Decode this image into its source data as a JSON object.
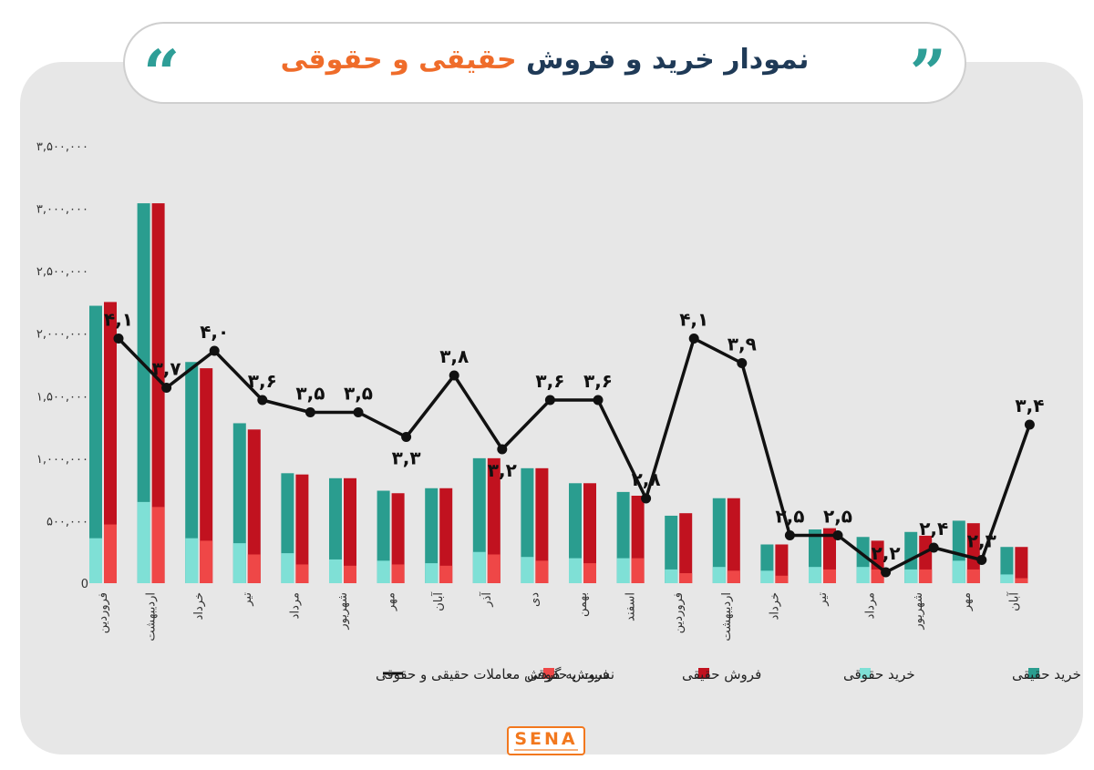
{
  "title": {
    "part1": "نمودار خرید و فروش",
    "part2": "حقیقی و حقوقی"
  },
  "logo": {
    "text": "SENA"
  },
  "colors": {
    "buy_real": "#2a9d8f",
    "buy_legal": "#7fe0d6",
    "sell_real": "#c1121f",
    "sell_legal": "#ef4747",
    "line": "#111111",
    "title_dark": "#1f3a57",
    "title_accent": "#ef6c2a"
  },
  "chart_data": {
    "type": "bar",
    "ylim": [
      0,
      3500000
    ],
    "yticks": [
      0,
      500000,
      1000000,
      1500000,
      2000000,
      2500000,
      3000000,
      3500000
    ],
    "ytick_labels": [
      "0",
      "۵۰۰,۰۰۰",
      "۱,۰۰۰,۰۰۰",
      "۱,۵۰۰,۰۰۰",
      "۲,۰۰۰,۰۰۰",
      "۲,۵۰۰,۰۰۰",
      "۳,۰۰۰,۰۰۰",
      "۳,۵۰۰,۰۰۰"
    ],
    "categories": [
      "فروردین",
      "اردیبهشت",
      "خرداد",
      "تیر",
      "مرداد",
      "شهریور",
      "مهر",
      "آبان",
      "آذر",
      "دی",
      "بهمن",
      "اسفند",
      "فروردین",
      "اردیبهشت",
      "خرداد",
      "تیر",
      "مرداد",
      "شهریور",
      "مهر",
      "آبان"
    ],
    "series": [
      {
        "name": "خرید حقیقی",
        "values": [
          2220000,
          3040000,
          1770000,
          1280000,
          880000,
          840000,
          740000,
          760000,
          1000000,
          920000,
          800000,
          730000,
          540000,
          680000,
          310000,
          430000,
          370000,
          410000,
          500000,
          290000
        ]
      },
      {
        "name": "خرید حقوقی",
        "values": [
          360000,
          650000,
          360000,
          320000,
          240000,
          190000,
          180000,
          160000,
          250000,
          210000,
          200000,
          200000,
          110000,
          130000,
          100000,
          130000,
          130000,
          110000,
          180000,
          70000
        ]
      },
      {
        "name": "فروش حقیقی",
        "values": [
          2250000,
          3040000,
          1720000,
          1230000,
          870000,
          840000,
          720000,
          760000,
          1000000,
          920000,
          800000,
          700000,
          560000,
          680000,
          310000,
          440000,
          340000,
          380000,
          480000,
          290000
        ]
      },
      {
        "name": "فروش حقوقی",
        "values": [
          470000,
          610000,
          340000,
          230000,
          150000,
          140000,
          150000,
          140000,
          230000,
          180000,
          160000,
          200000,
          80000,
          100000,
          60000,
          110000,
          110000,
          110000,
          110000,
          40000
        ]
      }
    ],
    "ratio": {
      "name": "نسبت به گردش معاملات حقیقی و حقوقی",
      "values": [
        4.1,
        3.7,
        4.0,
        3.6,
        3.5,
        3.5,
        3.3,
        3.8,
        3.2,
        3.6,
        3.6,
        2.8,
        4.1,
        3.9,
        2.5,
        2.5,
        2.2,
        2.4,
        2.3,
        3.4
      ],
      "labels": [
        "۴,۱",
        "۳,۷",
        "۴,۰",
        "۳,۶",
        "۳,۵",
        "۳,۵",
        "۳,۳",
        "۳,۸",
        "۳,۲",
        "۳,۶",
        "۳,۶",
        "۲,۸",
        "۴,۱",
        "۳,۹",
        "۲,۵",
        "۲,۵",
        "۲,۲",
        "۲,۴",
        "۲,۳",
        "۳,۴"
      ]
    },
    "legend": [
      {
        "name": "خرید حقیقی",
        "color_key": "buy_real"
      },
      {
        "name": "خرید حقوقی",
        "color_key": "buy_legal"
      },
      {
        "name": "فروش حقیقی",
        "color_key": "sell_real"
      },
      {
        "name": "فروش حقوقی",
        "color_key": "sell_legal"
      },
      {
        "name": "نسبت به گردش معاملات حقیقی و حقوقی",
        "color_key": "line"
      }
    ],
    "grid": false
  }
}
